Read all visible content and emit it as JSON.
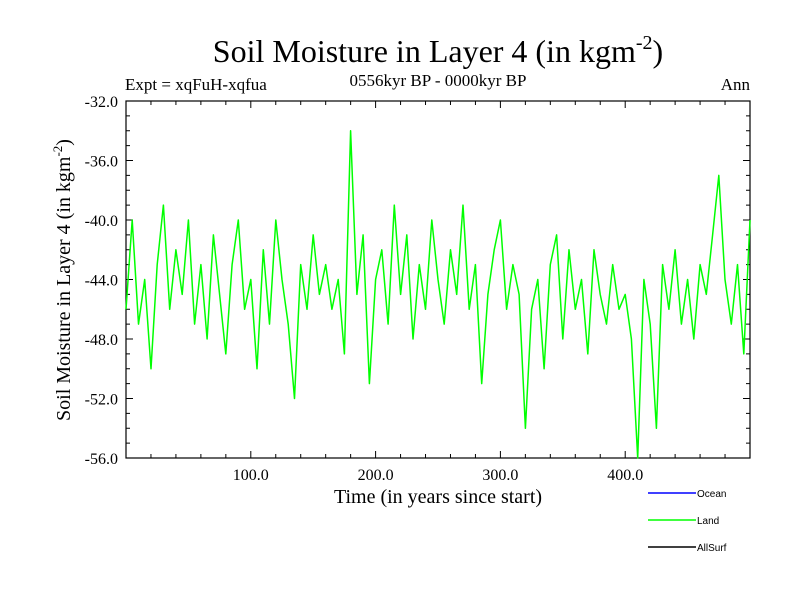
{
  "chart_data": {
    "type": "line",
    "title": "Soil Moisture in Layer 4 (in kgm",
    "title_sup": "-2",
    "title_close": ")",
    "subtitle_left": "Expt = xqFuH-xqfua",
    "subtitle_center": "0556kyr BP - 0000kyr BP",
    "subtitle_right": "Ann",
    "xlabel": "Time (in years since start)",
    "ylabel": "Soil Moisture in Layer 4 (in kgm",
    "ylabel_sup": "-2",
    "ylabel_close": ")",
    "xlim": [
      0,
      500
    ],
    "ylim": [
      -56,
      -32
    ],
    "xticks": [
      {
        "value": 100,
        "label": "100.0"
      },
      {
        "value": 200,
        "label": "200.0"
      },
      {
        "value": 300,
        "label": "300.0"
      },
      {
        "value": 400,
        "label": "400.0"
      }
    ],
    "yticks": [
      {
        "value": -32,
        "label": "-32.0"
      },
      {
        "value": -36,
        "label": "-36.0"
      },
      {
        "value": -40,
        "label": "-40.0"
      },
      {
        "value": -44,
        "label": "-44.0"
      },
      {
        "value": -48,
        "label": "-48.0"
      },
      {
        "value": -52,
        "label": "-52.0"
      },
      {
        "value": -56,
        "label": "-56.0"
      }
    ],
    "series": [
      {
        "name": "Ocean",
        "color": "#0000ff",
        "x": [],
        "y": []
      },
      {
        "name": "Land",
        "color": "#00ff00",
        "x": [
          0,
          5,
          10,
          15,
          20,
          25,
          30,
          35,
          40,
          45,
          50,
          55,
          60,
          65,
          70,
          75,
          80,
          85,
          90,
          95,
          100,
          105,
          110,
          115,
          120,
          125,
          130,
          135,
          140,
          145,
          150,
          155,
          160,
          165,
          170,
          175,
          180,
          185,
          190,
          195,
          200,
          205,
          210,
          215,
          220,
          225,
          230,
          235,
          240,
          245,
          250,
          255,
          260,
          265,
          270,
          275,
          280,
          285,
          290,
          295,
          300,
          305,
          310,
          315,
          320,
          325,
          330,
          335,
          340,
          345,
          350,
          355,
          360,
          365,
          370,
          375,
          380,
          385,
          390,
          395,
          400,
          405,
          410,
          415,
          420,
          425,
          430,
          435,
          440,
          445,
          450,
          455,
          460,
          465,
          470,
          475,
          480,
          485,
          490,
          495,
          500
        ],
        "y": [
          -46,
          -40,
          -47,
          -44,
          -50,
          -43,
          -39,
          -46,
          -42,
          -45,
          -40,
          -47,
          -43,
          -48,
          -41,
          -45,
          -49,
          -43,
          -40,
          -46,
          -44,
          -50,
          -42,
          -47,
          -40,
          -44,
          -47,
          -52,
          -43,
          -46,
          -41,
          -45,
          -43,
          -46,
          -44,
          -49,
          -34,
          -45,
          -41,
          -51,
          -44,
          -42,
          -47,
          -39,
          -45,
          -41,
          -48,
          -43,
          -46,
          -40,
          -44,
          -47,
          -42,
          -45,
          -39,
          -46,
          -43,
          -51,
          -45,
          -42,
          -40,
          -46,
          -43,
          -45,
          -54,
          -46,
          -44,
          -50,
          -43,
          -41,
          -48,
          -42,
          -46,
          -44,
          -49,
          -42,
          -45,
          -47,
          -43,
          -46,
          -45,
          -48,
          -56,
          -44,
          -47,
          -54,
          -43,
          -46,
          -42,
          -47,
          -44,
          -48,
          -43,
          -45,
          -41,
          -37,
          -44,
          -47,
          -43,
          -49,
          -40
        ]
      },
      {
        "name": "AllSurf",
        "color": "#000000",
        "x": [],
        "y": []
      }
    ]
  }
}
